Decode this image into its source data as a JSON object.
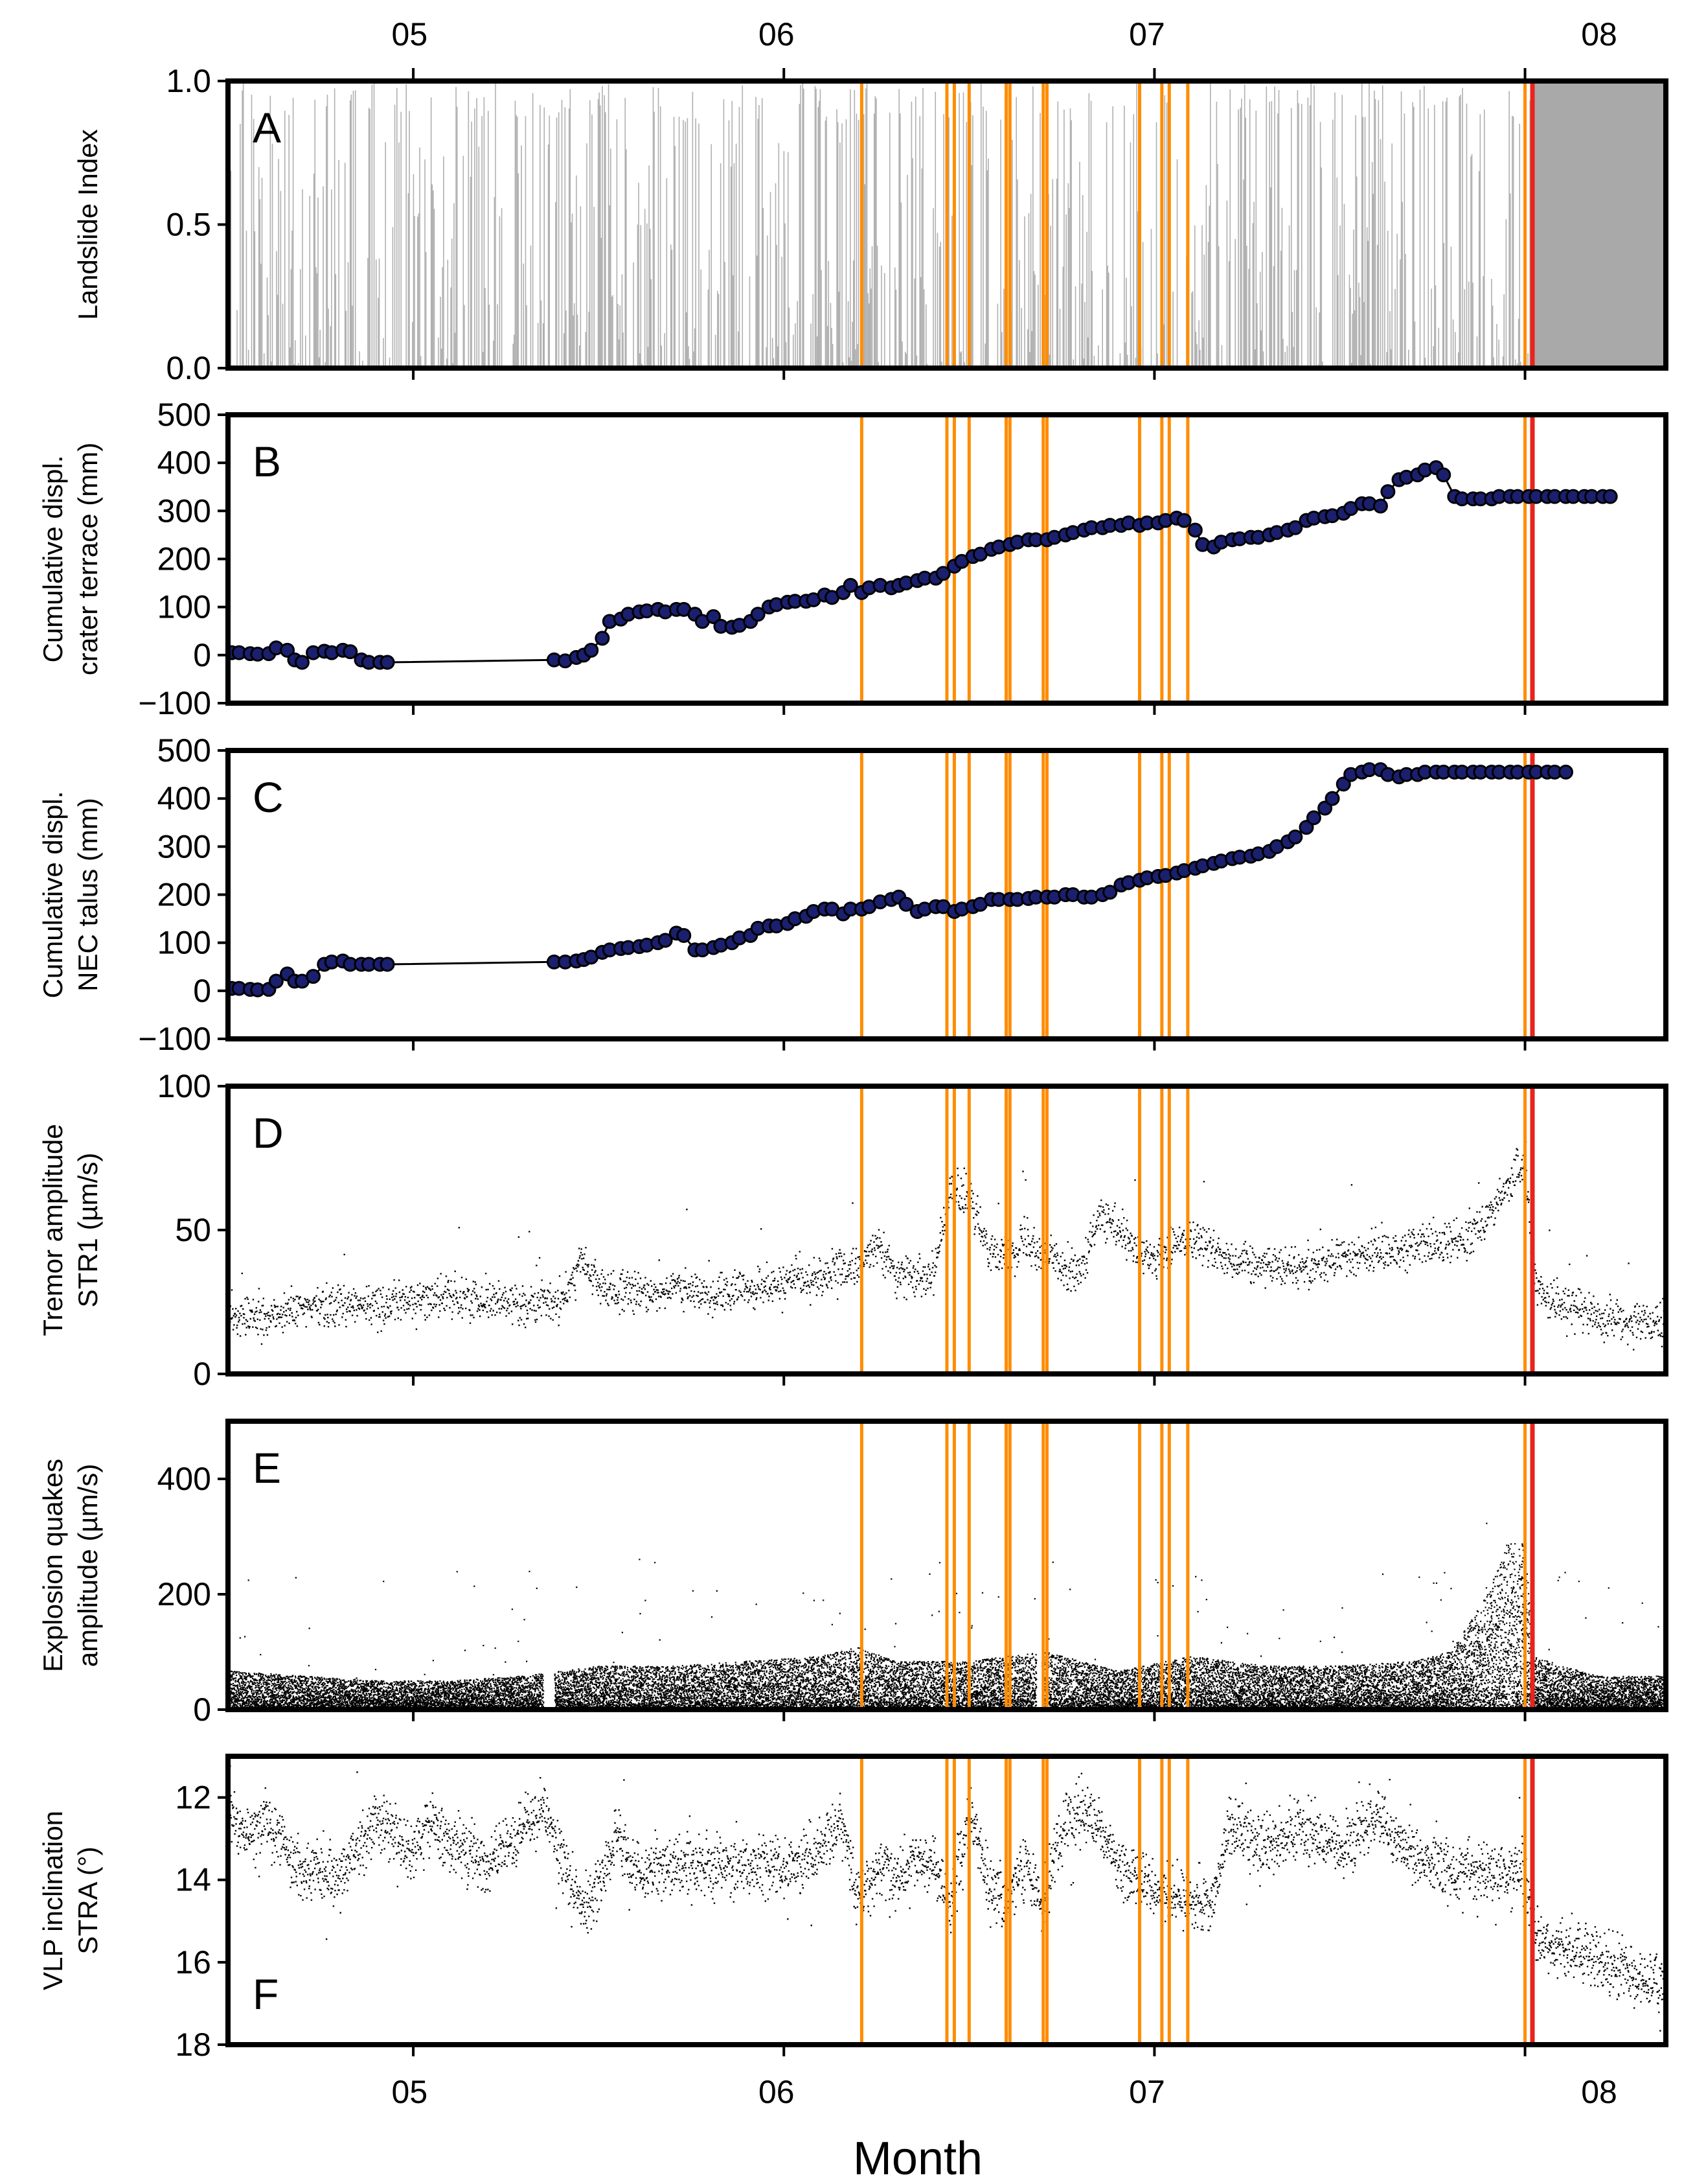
{
  "chart_data": {
    "type": "multi-panel time series",
    "xlabel": "Month",
    "x_range": [
      4.5,
      8.38
    ],
    "month_ticks": [
      "05",
      "06",
      "07",
      "08"
    ],
    "orange_event_lines": [
      6.21,
      6.44,
      6.46,
      6.5,
      6.6,
      6.61,
      6.7,
      6.71,
      6.96,
      7.02,
      7.04,
      7.09,
      8.0
    ],
    "red_event_lines": [
      8.02
    ],
    "event_colors": {
      "orange": "#ff8c00",
      "red": "#e8241c"
    },
    "panels": [
      {
        "id": "A",
        "label": "A",
        "type": "bar",
        "ylabel": "Landslide Index",
        "ylim": [
          0,
          1
        ],
        "yticks": [
          "0.0",
          "0.5",
          "1.0"
        ],
        "shaded_region_start": 8.02,
        "bar_color": "#b0b0b0",
        "shade_color": "#a9a9a9"
      },
      {
        "id": "B",
        "label": "B",
        "type": "line",
        "ylabel": [
          "Cumulative displ.",
          "crater terrace (mm)"
        ],
        "ylim": [
          -100,
          500
        ],
        "yticks": [
          "−100",
          "0",
          "100",
          "200",
          "300",
          "400",
          "500"
        ],
        "marker_color": "#1a1f6e",
        "x": [
          4.51,
          4.53,
          4.56,
          4.58,
          4.61,
          4.63,
          4.66,
          4.68,
          4.7,
          4.73,
          4.76,
          4.78,
          4.81,
          4.83,
          4.86,
          4.88,
          4.91,
          4.93,
          5.38,
          5.41,
          5.44,
          5.46,
          5.48,
          5.51,
          5.53,
          5.56,
          5.58,
          5.61,
          5.63,
          5.66,
          5.68,
          5.71,
          5.73,
          5.76,
          5.78,
          5.81,
          5.83,
          5.86,
          5.88,
          5.91,
          5.93,
          5.96,
          5.98,
          6.01,
          6.03,
          6.06,
          6.08,
          6.11,
          6.13,
          6.16,
          6.18,
          6.21,
          6.23,
          6.26,
          6.29,
          6.31,
          6.33,
          6.36,
          6.38,
          6.41,
          6.43,
          6.46,
          6.48,
          6.51,
          6.53,
          6.56,
          6.58,
          6.61,
          6.63,
          6.66,
          6.68,
          6.71,
          6.73,
          6.76,
          6.78,
          6.81,
          6.83,
          6.86,
          6.88,
          6.91,
          6.93,
          6.96,
          6.98,
          7.01,
          7.03,
          7.06,
          7.08,
          7.11,
          7.13,
          7.16,
          7.18,
          7.21,
          7.23,
          7.26,
          7.28,
          7.31,
          7.33,
          7.36,
          7.38,
          7.41,
          7.43,
          7.46,
          7.48,
          7.51,
          7.53,
          7.56,
          7.58,
          7.61,
          7.63,
          7.66,
          7.68,
          7.71,
          7.73,
          7.76,
          7.78,
          7.81,
          7.83,
          7.86,
          7.88,
          7.91,
          7.93,
          7.96,
          7.98,
          8.01,
          8.03,
          8.06,
          8.08,
          8.11,
          8.13,
          8.16,
          8.18,
          8.21,
          8.23
        ],
        "y": [
          5,
          5,
          3,
          2,
          3,
          15,
          10,
          -10,
          -15,
          5,
          8,
          5,
          10,
          7,
          -10,
          -15,
          -15,
          -15,
          -10,
          -12,
          -5,
          0,
          10,
          35,
          70,
          75,
          85,
          90,
          92,
          95,
          90,
          95,
          95,
          85,
          70,
          80,
          60,
          58,
          62,
          70,
          85,
          100,
          105,
          110,
          112,
          112,
          115,
          125,
          120,
          130,
          145,
          130,
          140,
          145,
          140,
          145,
          150,
          155,
          160,
          160,
          170,
          185,
          195,
          205,
          210,
          220,
          225,
          230,
          235,
          240,
          240,
          240,
          245,
          250,
          255,
          260,
          265,
          265,
          270,
          270,
          275,
          270,
          275,
          275,
          280,
          285,
          280,
          260,
          230,
          225,
          235,
          240,
          242,
          245,
          245,
          250,
          255,
          260,
          265,
          280,
          285,
          288,
          290,
          295,
          305,
          315,
          315,
          310,
          340,
          365,
          370,
          375,
          385,
          390,
          375,
          330,
          325,
          325,
          325,
          325,
          330,
          330,
          330,
          330,
          330,
          330,
          330,
          330,
          330,
          330,
          330,
          330,
          330
        ]
      },
      {
        "id": "C",
        "label": "C",
        "type": "line",
        "ylabel": [
          "Cumulative displ.",
          "NEC talus (mm)"
        ],
        "ylim": [
          -100,
          500
        ],
        "yticks": [
          "−100",
          "0",
          "100",
          "200",
          "300",
          "400",
          "500"
        ],
        "marker_color": "#1a1f6e",
        "x": [
          4.51,
          4.53,
          4.56,
          4.58,
          4.61,
          4.63,
          4.66,
          4.68,
          4.7,
          4.73,
          4.76,
          4.78,
          4.81,
          4.83,
          4.86,
          4.88,
          4.91,
          4.93,
          5.38,
          5.41,
          5.44,
          5.46,
          5.48,
          5.51,
          5.53,
          5.56,
          5.58,
          5.61,
          5.63,
          5.66,
          5.68,
          5.71,
          5.73,
          5.76,
          5.78,
          5.81,
          5.83,
          5.86,
          5.88,
          5.91,
          5.93,
          5.96,
          5.98,
          6.01,
          6.03,
          6.06,
          6.08,
          6.11,
          6.13,
          6.16,
          6.18,
          6.21,
          6.23,
          6.26,
          6.29,
          6.31,
          6.33,
          6.36,
          6.38,
          6.41,
          6.43,
          6.46,
          6.48,
          6.51,
          6.53,
          6.56,
          6.58,
          6.61,
          6.63,
          6.66,
          6.68,
          6.71,
          6.73,
          6.76,
          6.78,
          6.81,
          6.83,
          6.86,
          6.88,
          6.91,
          6.93,
          6.96,
          6.98,
          7.01,
          7.03,
          7.06,
          7.08,
          7.11,
          7.13,
          7.16,
          7.18,
          7.21,
          7.23,
          7.26,
          7.28,
          7.31,
          7.33,
          7.36,
          7.38,
          7.41,
          7.43,
          7.46,
          7.48,
          7.51,
          7.53,
          7.56,
          7.58,
          7.61,
          7.63,
          7.66,
          7.68,
          7.71,
          7.73,
          7.76,
          7.78,
          7.81,
          7.83,
          7.86,
          7.88,
          7.91,
          7.93,
          7.96,
          7.98,
          8.01,
          8.03,
          8.06,
          8.08,
          8.11
        ],
        "y": [
          5,
          5,
          3,
          2,
          3,
          20,
          35,
          20,
          20,
          30,
          55,
          60,
          62,
          55,
          55,
          55,
          55,
          55,
          60,
          60,
          62,
          65,
          70,
          80,
          85,
          88,
          90,
          92,
          95,
          100,
          105,
          120,
          115,
          85,
          85,
          90,
          95,
          100,
          110,
          115,
          130,
          135,
          135,
          140,
          150,
          155,
          165,
          170,
          170,
          160,
          170,
          170,
          175,
          185,
          190,
          195,
          180,
          165,
          170,
          175,
          175,
          165,
          170,
          175,
          180,
          190,
          190,
          190,
          190,
          192,
          195,
          195,
          195,
          200,
          200,
          195,
          195,
          200,
          205,
          220,
          225,
          230,
          235,
          238,
          240,
          245,
          250,
          255,
          260,
          265,
          270,
          275,
          278,
          280,
          285,
          290,
          300,
          310,
          320,
          340,
          360,
          380,
          400,
          430,
          450,
          455,
          460,
          460,
          450,
          445,
          450,
          450,
          455,
          455,
          455,
          455,
          455,
          455,
          455,
          455,
          455,
          455,
          455,
          455,
          455,
          455,
          455,
          455
        ]
      },
      {
        "id": "D",
        "label": "D",
        "type": "scatter",
        "ylabel": [
          "Tremor amplitude",
          "STR1 (µm/s)"
        ],
        "ylim": [
          0,
          100
        ],
        "yticks": [
          "0",
          "50",
          "100"
        ],
        "trend_x": [
          4.5,
          4.6,
          4.7,
          4.8,
          4.9,
          5.0,
          5.1,
          5.2,
          5.3,
          5.4,
          5.45,
          5.5,
          5.6,
          5.7,
          5.8,
          5.9,
          6.0,
          6.1,
          6.2,
          6.25,
          6.3,
          6.4,
          6.45,
          6.5,
          6.55,
          6.6,
          6.65,
          6.7,
          6.75,
          6.8,
          6.85,
          6.9,
          6.95,
          7.0,
          7.05,
          7.1,
          7.2,
          7.3,
          7.4,
          7.5,
          7.6,
          7.7,
          7.8,
          7.9,
          7.95,
          8.0,
          8.02,
          8.05,
          8.1,
          8.2,
          8.3,
          8.38
        ],
        "trend_y": [
          20,
          20,
          23,
          25,
          24,
          26,
          27,
          26,
          25,
          25,
          40,
          30,
          28,
          30,
          28,
          29,
          32,
          34,
          38,
          45,
          35,
          35,
          65,
          60,
          45,
          40,
          48,
          42,
          38,
          35,
          55,
          50,
          42,
          40,
          45,
          48,
          40,
          38,
          38,
          40,
          42,
          45,
          45,
          55,
          65,
          75,
          32,
          28,
          24,
          20,
          18,
          16
        ]
      },
      {
        "id": "E",
        "label": "E",
        "type": "scatter",
        "ylabel": [
          "Explosion quakes",
          "amplitude (µm/s)"
        ],
        "ylim": [
          0,
          500
        ],
        "yticks": [
          "0",
          "200",
          "400"
        ],
        "trend_x": [
          4.5,
          4.7,
          4.9,
          5.1,
          5.3,
          5.5,
          5.7,
          5.9,
          6.1,
          6.2,
          6.3,
          6.5,
          6.7,
          6.9,
          7.1,
          7.3,
          7.5,
          7.7,
          7.8,
          7.9,
          7.95,
          8.0,
          8.02,
          8.1,
          8.2,
          8.38
        ],
        "trend_y": [
          40,
          35,
          30,
          30,
          35,
          45,
          45,
          50,
          55,
          65,
          50,
          50,
          60,
          40,
          55,
          45,
          45,
          50,
          60,
          120,
          170,
          170,
          55,
          45,
          35,
          35
        ]
      },
      {
        "id": "F",
        "label": "F",
        "type": "scatter",
        "ylabel": [
          "VLP inclination",
          "STRA (°)"
        ],
        "ylim": [
          18,
          11
        ],
        "yticks": [
          "12",
          "14",
          "16",
          "18"
        ],
        "trend_x": [
          4.5,
          4.55,
          4.6,
          4.7,
          4.8,
          4.9,
          5.0,
          5.05,
          5.1,
          5.2,
          5.3,
          5.35,
          5.45,
          5.5,
          5.55,
          5.6,
          5.7,
          5.8,
          5.9,
          6.0,
          6.1,
          6.15,
          6.2,
          6.25,
          6.3,
          6.35,
          6.4,
          6.45,
          6.5,
          6.55,
          6.6,
          6.65,
          6.7,
          6.75,
          6.8,
          6.85,
          6.9,
          7.0,
          7.1,
          7.15,
          7.2,
          7.3,
          7.4,
          7.5,
          7.6,
          7.7,
          7.8,
          7.9,
          8.0,
          8.02,
          8.1,
          8.2,
          8.3,
          8.38
        ],
        "trend_y": [
          12.5,
          13.0,
          12.5,
          13.8,
          13.8,
          12.6,
          13.3,
          12.5,
          13.2,
          13.6,
          12.8,
          12.2,
          14.6,
          14.2,
          12.8,
          13.8,
          13.6,
          13.7,
          13.6,
          13.7,
          13.3,
          12.5,
          14.4,
          13.6,
          14.1,
          13.4,
          13.6,
          14.6,
          12.3,
          14.1,
          14.4,
          13.6,
          14.6,
          12.6,
          12.4,
          12.6,
          13.7,
          14.2,
          14.5,
          14.6,
          12.6,
          13.2,
          12.7,
          13.3,
          12.5,
          13.4,
          13.8,
          13.8,
          13.8,
          15.4,
          15.6,
          15.9,
          16.4,
          16.6
        ]
      }
    ]
  }
}
